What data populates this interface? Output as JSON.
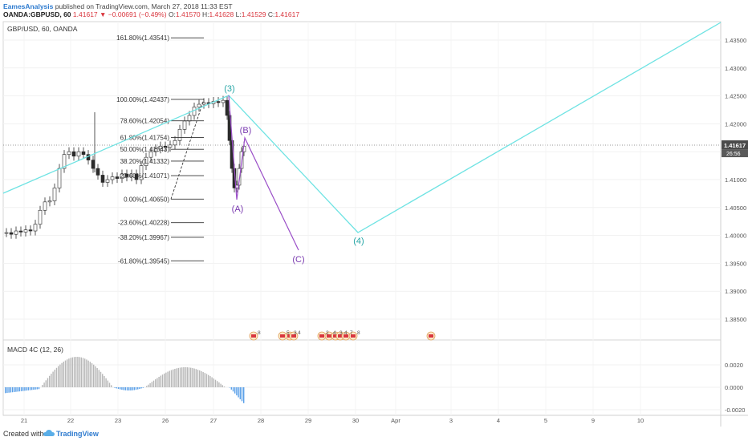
{
  "header": {
    "author": "EamesAnalysis",
    "published": "published on TradingView.com, March 27, 2018 11:33 EST",
    "symbol": "OANDA:GBPUSD, 60",
    "change": "1.41617 ▼ −0.00691 (−0.49%)",
    "o_label": "O:",
    "o_value": "1.41570",
    "h_label": "H:",
    "h_value": "1.41628",
    "l_label": "L:",
    "l_value": "1.41529",
    "c_label": "C:",
    "c_value": "1.41617"
  },
  "pane_title": "GBP/USD, 60, OANDA",
  "macd_title": "MACD 4C (12, 26)",
  "price_axis": {
    "ticks": [
      "1.43500",
      "1.43000",
      "1.42500",
      "1.42000",
      "1.41500",
      "1.41000",
      "1.40500",
      "1.40000",
      "1.39500",
      "1.39000",
      "1.38500"
    ],
    "last_price": "1.41617",
    "countdown": "26:56"
  },
  "macd_axis": {
    "ticks": [
      "0.0020",
      "0.0000",
      "-0.0020"
    ]
  },
  "time_axis": {
    "ticks": [
      "21",
      "22",
      "23",
      "26",
      "27",
      "28",
      "29",
      "30",
      "Apr",
      "3",
      "4",
      "5",
      "9",
      "10"
    ]
  },
  "fibonacci": [
    {
      "label": "161.80%(1.43541)",
      "price": 1.43541
    },
    {
      "label": "100.00%(1.42437)",
      "price": 1.42437
    },
    {
      "label": "78.60%(1.42054)",
      "price": 1.42054
    },
    {
      "label": "61.80%(1.41754)",
      "price": 1.41754
    },
    {
      "label": "50.00%(1.41543)",
      "price": 1.41543
    },
    {
      "label": "38.20%(1.41332)",
      "price": 1.41332
    },
    {
      "label": "23.60%(1.41071)",
      "price": 1.41071
    },
    {
      "label": "0.00%(1.40650)",
      "price": 1.4065
    },
    {
      "label": "-23.60%(1.40228)",
      "price": 1.40228
    },
    {
      "label": "-38.20%(1.39967)",
      "price": 1.39967
    },
    {
      "label": "-61.80%(1.39545)",
      "price": 1.39545
    }
  ],
  "wave_labels": {
    "w3": "(3)",
    "w4": "(4)",
    "wA": "(A)",
    "wB": "(B)",
    "wC": "(C)"
  },
  "event_markers": [
    "8",
    "5",
    "3",
    "4",
    "2",
    "4",
    "3",
    "4",
    "7",
    "8"
  ],
  "colors": {
    "cyan": "#6fe3e3",
    "purple": "#9b4fc8",
    "cyan_label": "#26a6a6",
    "purple_label": "#7a3ab0",
    "macd_pos": "#b7b7b7",
    "macd_neg": "#5aa0e8"
  },
  "footer": {
    "created": "Created with",
    "brand": "TradingView"
  }
}
